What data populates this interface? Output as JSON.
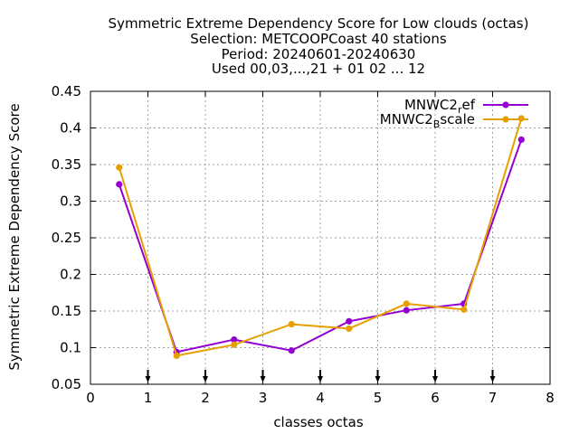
{
  "chart_data": {
    "type": "line",
    "title_lines": [
      "Symmetric Extreme Dependency Score  for Low clouds (octas)",
      "Selection: METCOOPCoast     40 stations",
      "Period: 20240601-20240630",
      "Used 00,03,...,21 + 01 02 ... 12"
    ],
    "xlabel": "classes octas",
    "ylabel": "Symmetric Extreme Dependency Score",
    "xlim": [
      0,
      8
    ],
    "ylim": [
      0.05,
      0.45
    ],
    "x_ticks": [
      "0",
      "1",
      "2",
      "3",
      "4",
      "5",
      "6",
      "7",
      "8"
    ],
    "y_ticks": [
      "0.05",
      "0.1",
      "0.15",
      "0.2",
      "0.25",
      "0.3",
      "0.35",
      "0.4",
      "0.45"
    ],
    "grid": true,
    "legend_position": "top-right",
    "x_markers": [
      1,
      2,
      3,
      4,
      5,
      6,
      7
    ],
    "series": [
      {
        "name_base": "MNWC2",
        "name_sub": "r",
        "name_tail": "ef",
        "color": "#9400d3",
        "x": [
          0.5,
          1.5,
          2.5,
          3.5,
          4.5,
          5.5,
          6.5,
          7.5
        ],
        "values": [
          0.323,
          0.094,
          0.111,
          0.096,
          0.136,
          0.151,
          0.16,
          0.384
        ]
      },
      {
        "name_base": "MNWC2",
        "name_sub": "B",
        "name_tail": "scale",
        "color": "#e69f00",
        "x": [
          0.5,
          1.5,
          2.5,
          3.5,
          4.5,
          5.5,
          6.5,
          7.5
        ],
        "values": [
          0.346,
          0.089,
          0.104,
          0.132,
          0.126,
          0.16,
          0.152,
          0.413
        ]
      }
    ]
  }
}
